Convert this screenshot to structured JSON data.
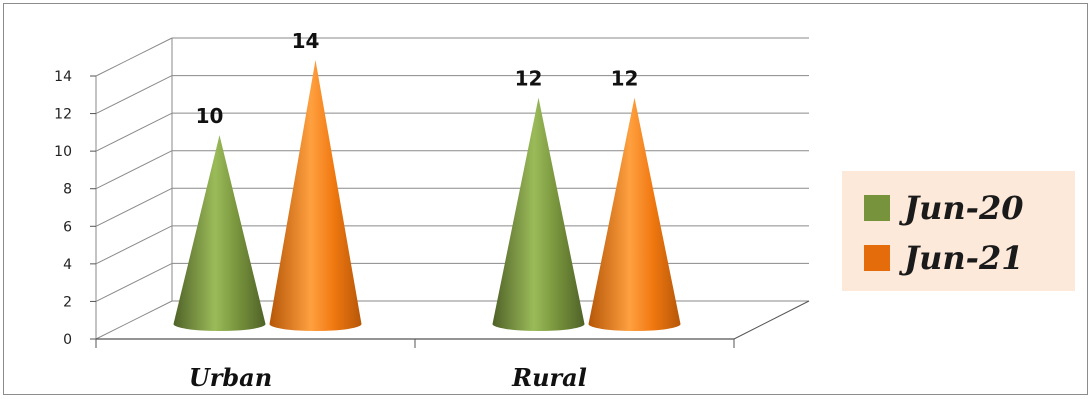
{
  "chart_data": {
    "type": "bar",
    "style": "3d-cone",
    "categories": [
      "Urban",
      "Rural"
    ],
    "series": [
      {
        "name": "Jun-20",
        "values": [
          10,
          12
        ],
        "color": "#77933c"
      },
      {
        "name": "Jun-21",
        "values": [
          14,
          12
        ],
        "color": "#e46c0a"
      }
    ],
    "yticks": [
      "0",
      "2",
      "4",
      "6",
      "8",
      "10",
      "12",
      "14"
    ],
    "ylim": [
      0,
      14
    ],
    "grid": true,
    "legend_position": "right"
  }
}
